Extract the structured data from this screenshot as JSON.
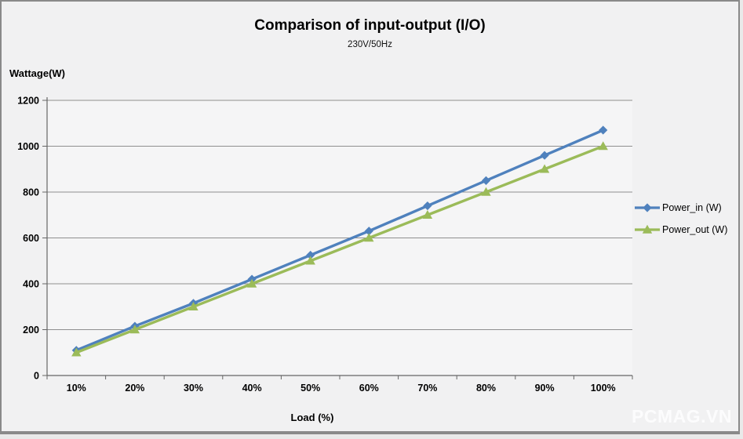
{
  "watermark": "PCMAG.VN",
  "colors": {
    "background": "#f1f1f2",
    "plot_background": "#f5f5f6",
    "gridline": "#8f8f8f",
    "axis": "#666666",
    "text": "#000000",
    "power_in": "#4F81BD",
    "power_out": "#9BBB59",
    "watermark": "#ffffff"
  },
  "chart_data": {
    "type": "line",
    "title": "Comparison of input-output (I/O)",
    "subtitle": "230V/50Hz",
    "xlabel": "Load (%)",
    "ylabel": "Wattage(W)",
    "categories": [
      "10%",
      "20%",
      "30%",
      "40%",
      "50%",
      "60%",
      "70%",
      "80%",
      "90%",
      "100%"
    ],
    "series": [
      {
        "name": "Power_in (W)",
        "color": "#4F81BD",
        "marker": "diamond",
        "values": [
          110,
          215,
          315,
          420,
          525,
          630,
          740,
          850,
          960,
          1070
        ]
      },
      {
        "name": "Power_out (W)",
        "color": "#9BBB59",
        "marker": "triangle",
        "values": [
          100,
          200,
          300,
          400,
          500,
          600,
          700,
          800,
          900,
          1000
        ]
      }
    ],
    "ylim": [
      0,
      1200
    ],
    "ytick_step": 200,
    "grid": true,
    "legend_position": "right"
  }
}
